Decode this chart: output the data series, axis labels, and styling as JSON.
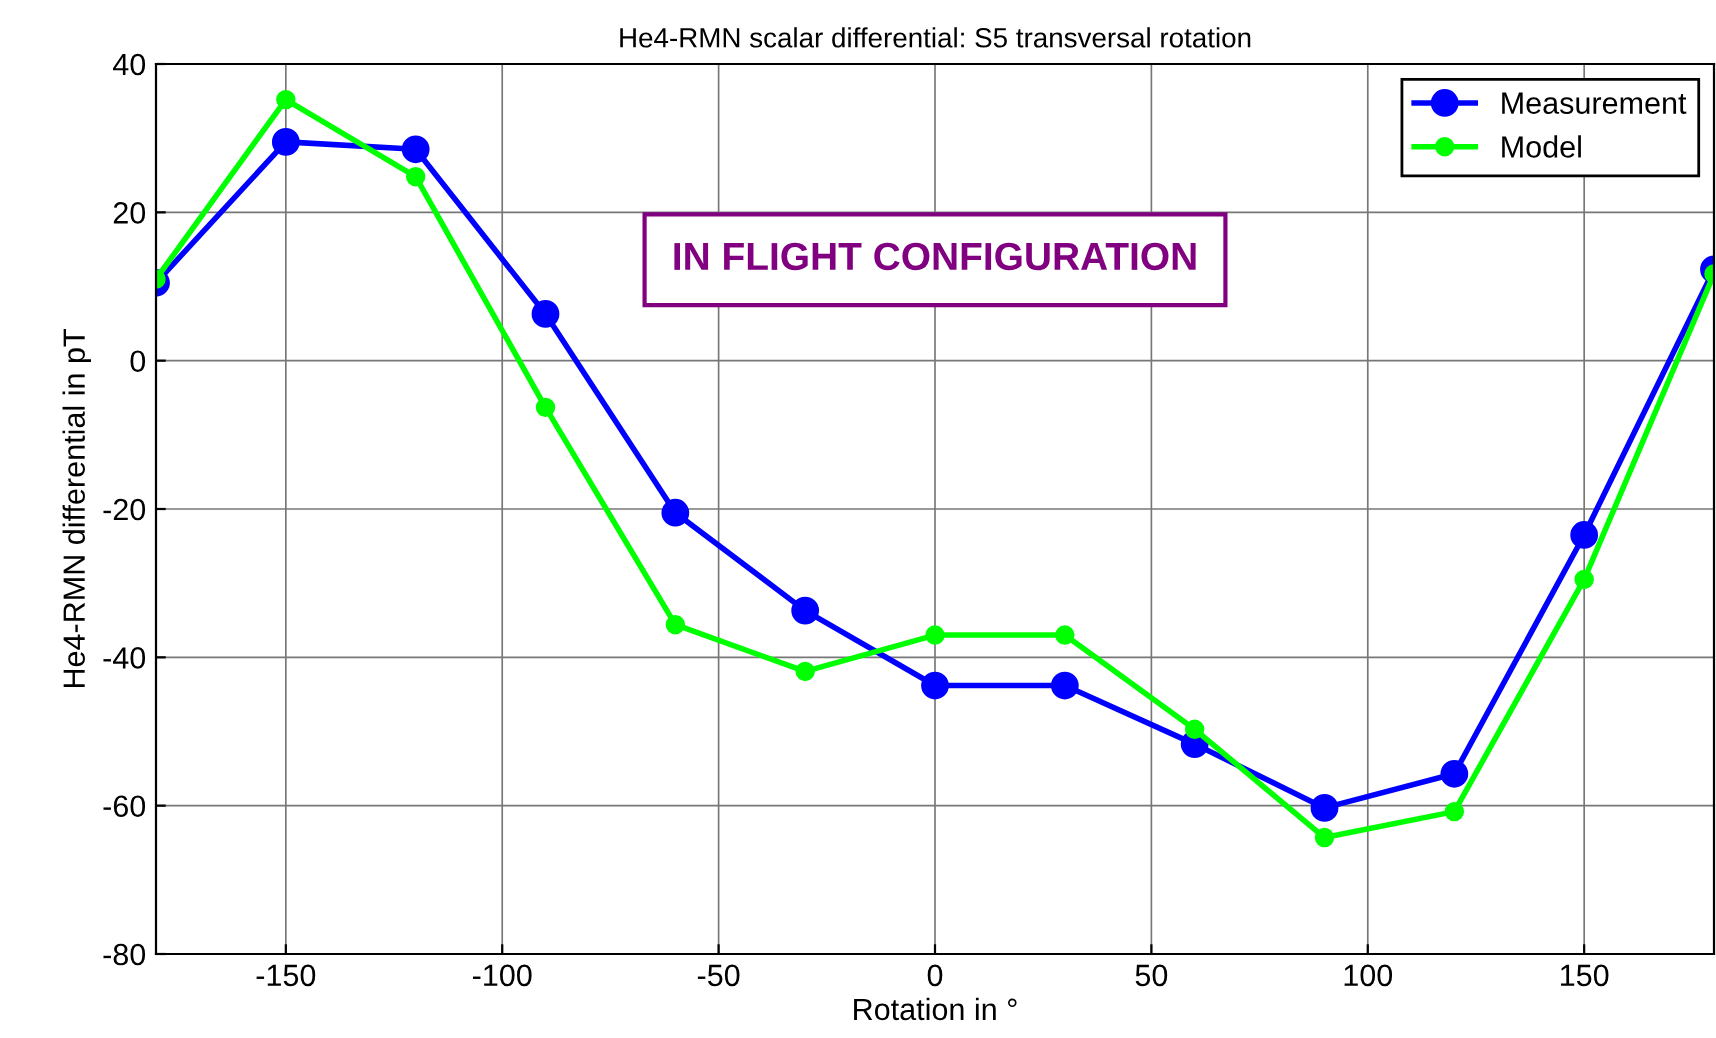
{
  "chart_data": {
    "type": "line",
    "title": "He4-RMN scalar differential: S5 transversal rotation",
    "xlabel": "Rotation in °",
    "ylabel": "He4-RMN differential in pT",
    "x": [
      -180,
      -150,
      -120,
      -90,
      -60,
      -30,
      0,
      30,
      60,
      90,
      120,
      150,
      180
    ],
    "series": [
      {
        "name": "Measurement",
        "color": "#0000ff",
        "values": [
          10.5,
          29.5,
          28.5,
          6.3,
          -20.5,
          -33.7,
          -43.8,
          -43.8,
          -51.7,
          -60.3,
          -55.7,
          -23.5,
          12.3
        ]
      },
      {
        "name": "Model",
        "color": "#00ff00",
        "values": [
          11,
          35.2,
          24.8,
          -6.3,
          -35.6,
          -41.9,
          -37,
          -37,
          -49.7,
          -64.3,
          -60.8,
          -29.5,
          11.7
        ]
      }
    ],
    "xlim": [
      -180,
      180
    ],
    "ylim": [
      -80,
      40
    ],
    "xticks": [
      -150,
      -100,
      -50,
      0,
      50,
      100,
      150
    ],
    "yticks": [
      -80,
      -60,
      -40,
      -20,
      0,
      20,
      40
    ],
    "grid": true,
    "legend": "top right",
    "marker": "circle",
    "line_style": "solid",
    "annotations": [
      "IN FLIGHT CONFIGURATION"
    ]
  }
}
